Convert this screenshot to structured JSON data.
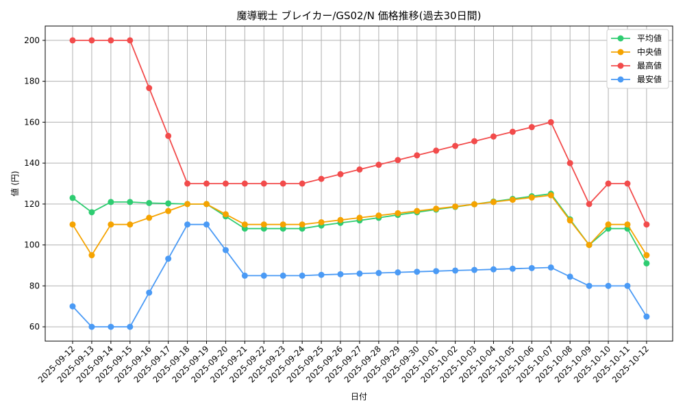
{
  "chart_data": {
    "type": "line",
    "title": "魔導戦士 ブレイカー/GS02/N 価格推移(過去30日間)",
    "xlabel": "日付",
    "ylabel": "値 (円)",
    "ylim": [
      53,
      207
    ],
    "yticks": [
      60,
      80,
      100,
      120,
      140,
      160,
      180,
      200
    ],
    "grid": true,
    "legend_position": "top-right",
    "categories": [
      "2025-09-12",
      "2025-09-13",
      "2025-09-14",
      "2025-09-15",
      "2025-09-16",
      "2025-09-17",
      "2025-09-18",
      "2025-09-19",
      "2025-09-20",
      "2025-09-21",
      "2025-09-22",
      "2025-09-23",
      "2025-09-24",
      "2025-09-25",
      "2025-09-26",
      "2025-09-27",
      "2025-09-28",
      "2025-09-29",
      "2025-09-30",
      "2025-10-01",
      "2025-10-02",
      "2025-10-03",
      "2025-10-04",
      "2025-10-05",
      "2025-10-06",
      "2025-10-07",
      "2025-10-08",
      "2025-10-09",
      "2025-10-10",
      "2025-10-11",
      "2025-10-12"
    ],
    "series": [
      {
        "name": "平均値",
        "color": "#2ecc71",
        "values": [
          123,
          116,
          121,
          121,
          120.5,
          120.3,
          120,
          120,
          114,
          108,
          108,
          108,
          108,
          109.5,
          110.8,
          112,
          113.3,
          114.7,
          116,
          117.3,
          118.6,
          119.9,
          121.2,
          122.5,
          123.8,
          125,
          112.5,
          100,
          108,
          108,
          91
        ]
      },
      {
        "name": "中央値",
        "color": "#f5a300",
        "values": [
          110,
          95,
          110,
          110,
          113.3,
          116.6,
          120,
          120,
          115,
          110,
          110,
          110,
          110,
          111.1,
          112.2,
          113.3,
          114.4,
          115.5,
          116.6,
          117.7,
          118.8,
          119.9,
          121,
          122.1,
          123.2,
          124.3,
          112,
          100,
          110,
          110,
          95
        ]
      },
      {
        "name": "最高値",
        "color": "#f24b4b",
        "values": [
          200,
          200,
          200,
          200,
          176.7,
          153.3,
          130,
          130,
          130,
          130,
          130,
          130,
          130,
          132.3,
          134.6,
          136.9,
          139.2,
          141.5,
          143.8,
          146.1,
          148.4,
          150.7,
          153,
          155.3,
          157.6,
          160,
          140,
          120,
          130,
          130,
          110
        ]
      },
      {
        "name": "最安値",
        "color": "#4a9af5",
        "values": [
          70,
          60,
          60,
          60,
          76.7,
          93.3,
          110,
          110,
          97.5,
          85,
          85,
          85,
          85,
          85.4,
          85.7,
          86,
          86.3,
          86.6,
          86.9,
          87.2,
          87.5,
          87.8,
          88.1,
          88.4,
          88.7,
          89,
          84.5,
          80,
          80,
          80,
          65
        ]
      }
    ]
  }
}
